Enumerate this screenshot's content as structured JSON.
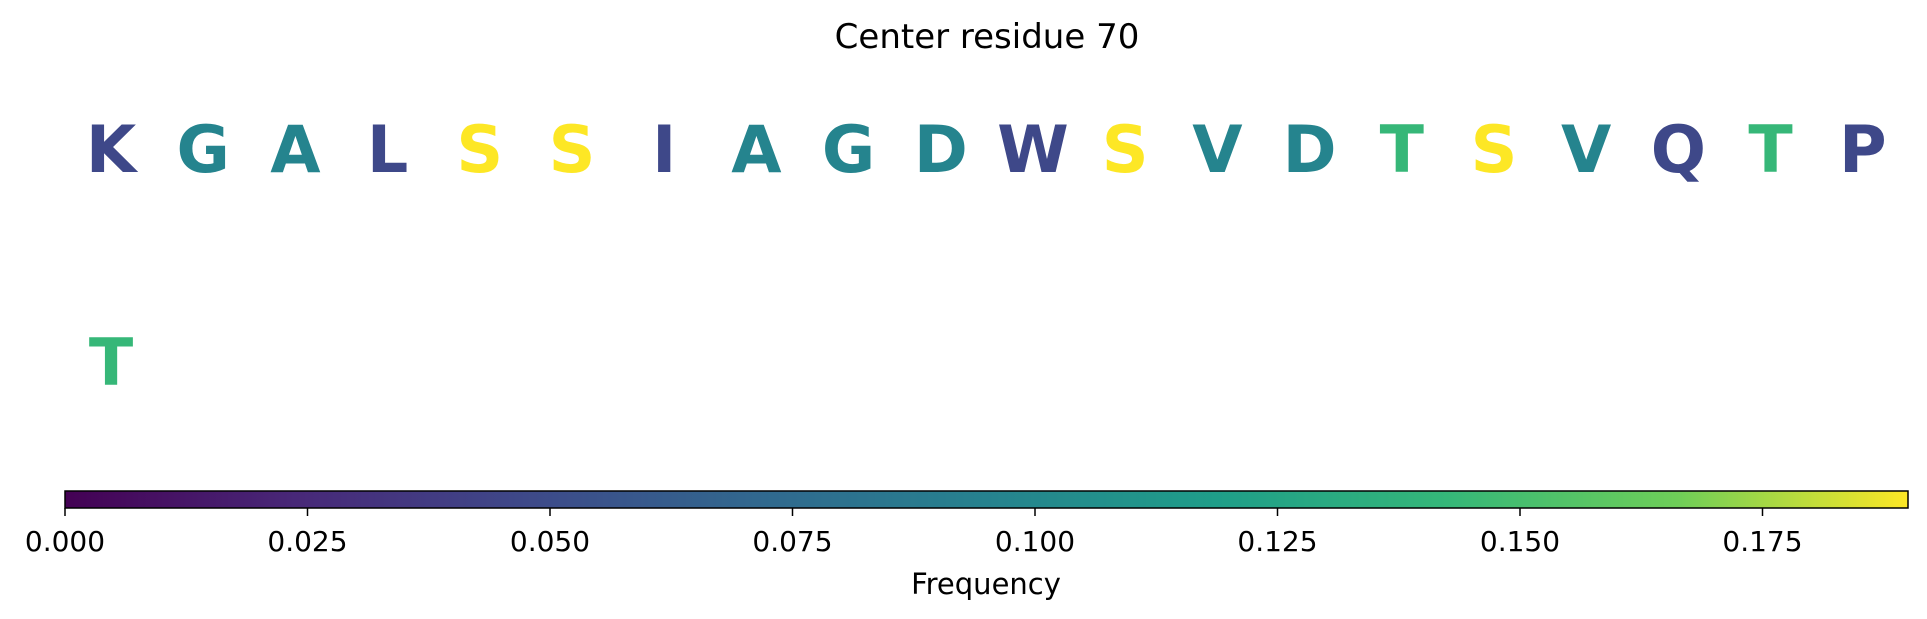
{
  "chart_data": {
    "type": "sequence-logo",
    "title": "Center residue 70",
    "rows": [
      {
        "residues": [
          {
            "letter": "K",
            "frequency": 0.047
          },
          {
            "letter": "G",
            "frequency": 0.097
          },
          {
            "letter": "A",
            "frequency": 0.097
          },
          {
            "letter": "L",
            "frequency": 0.047
          },
          {
            "letter": "S",
            "frequency": 0.19
          },
          {
            "letter": "S",
            "frequency": 0.19
          },
          {
            "letter": "I",
            "frequency": 0.047
          },
          {
            "letter": "A",
            "frequency": 0.097
          },
          {
            "letter": "G",
            "frequency": 0.097
          },
          {
            "letter": "D",
            "frequency": 0.097
          },
          {
            "letter": "W",
            "frequency": 0.047
          },
          {
            "letter": "S",
            "frequency": 0.19
          },
          {
            "letter": "V",
            "frequency": 0.097
          },
          {
            "letter": "D",
            "frequency": 0.097
          },
          {
            "letter": "T",
            "frequency": 0.143
          },
          {
            "letter": "S",
            "frequency": 0.19
          },
          {
            "letter": "V",
            "frequency": 0.097
          },
          {
            "letter": "Q",
            "frequency": 0.047
          },
          {
            "letter": "T",
            "frequency": 0.143
          },
          {
            "letter": "P",
            "frequency": 0.047
          }
        ]
      },
      {
        "residues": [
          {
            "letter": "T",
            "frequency": 0.143
          }
        ]
      }
    ],
    "colorbar": {
      "label": "Frequency",
      "colormap": "viridis",
      "range": [
        0.0,
        0.19
      ],
      "ticks": [
        0.0,
        0.025,
        0.05,
        0.075,
        0.1,
        0.125,
        0.15,
        0.175
      ],
      "tick_labels": [
        "0.000",
        "0.025",
        "0.050",
        "0.075",
        "0.100",
        "0.125",
        "0.150",
        "0.175"
      ]
    }
  }
}
